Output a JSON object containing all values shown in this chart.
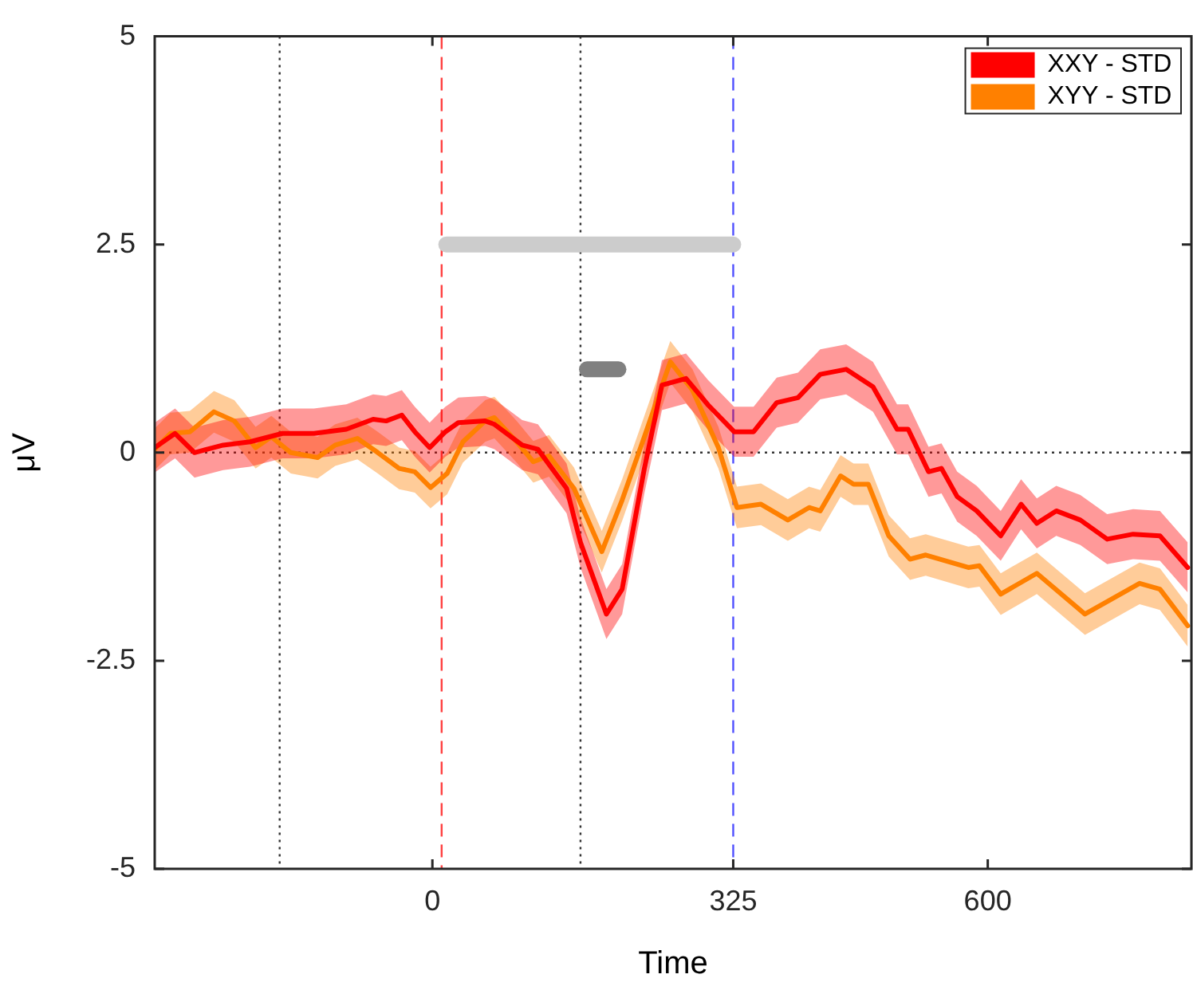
{
  "chart_data": {
    "type": "line",
    "xlabel": "Time",
    "ylabel": "μV",
    "xlim": [
      -300,
      820
    ],
    "xticks": [
      0,
      325,
      600
    ],
    "ylim": [
      -5,
      5
    ],
    "yticks": [
      -5,
      -2.5,
      0,
      2.5,
      5
    ],
    "grid": false,
    "legend": "top right",
    "marker": "none",
    "line_style": "solid",
    "series": [
      {
        "name": "XXY - STD",
        "color": "#ff0000",
        "x": [
          -300,
          -278,
          -257,
          -226,
          -197,
          -162,
          -128,
          -93,
          -64,
          -50,
          -33,
          -19,
          -3,
          14,
          28,
          57,
          67,
          97,
          114,
          145,
          160,
          188,
          205,
          229,
          248,
          274,
          298,
          326,
          347,
          372,
          395,
          419,
          447,
          476,
          502,
          514,
          536,
          550,
          567,
          588,
          614,
          636,
          653,
          674,
          700,
          729,
          757,
          786,
          816
        ],
        "values": [
          0.06,
          0.23,
          0,
          0.09,
          0.13,
          0.23,
          0.23,
          0.28,
          0.4,
          0.38,
          0.45,
          0.25,
          0.06,
          0.25,
          0.36,
          0.38,
          0.34,
          0.09,
          0.04,
          -0.43,
          -1.08,
          -1.94,
          -1.64,
          -0.19,
          0.81,
          0.89,
          0.57,
          0.25,
          0.25,
          0.6,
          0.66,
          0.94,
          1.0,
          0.79,
          0.28,
          0.28,
          -0.23,
          -0.19,
          -0.53,
          -0.7,
          -1.0,
          -0.62,
          -0.85,
          -0.7,
          -0.81,
          -1.04,
          -0.98,
          -1.0,
          -1.38
        ],
        "lower": [
          -0.24,
          -0.07,
          -0.3,
          -0.21,
          -0.17,
          -0.07,
          -0.07,
          -0.02,
          0.1,
          0.08,
          0.15,
          -0.05,
          -0.24,
          -0.05,
          0.06,
          0.08,
          0.04,
          -0.21,
          -0.26,
          -0.73,
          -1.38,
          -2.24,
          -1.94,
          -0.49,
          0.51,
          0.59,
          0.27,
          -0.05,
          -0.05,
          0.3,
          0.36,
          0.64,
          0.7,
          0.49,
          -0.02,
          -0.02,
          -0.53,
          -0.49,
          -0.83,
          -1.0,
          -1.3,
          -0.92,
          -1.15,
          -1.0,
          -1.11,
          -1.34,
          -1.28,
          -1.3,
          -1.68
        ],
        "upper": [
          0.36,
          0.53,
          0.3,
          0.39,
          0.43,
          0.53,
          0.53,
          0.58,
          0.7,
          0.68,
          0.75,
          0.55,
          0.36,
          0.55,
          0.66,
          0.68,
          0.64,
          0.39,
          0.34,
          -0.13,
          -0.78,
          -1.64,
          -1.34,
          0.11,
          1.11,
          1.19,
          0.87,
          0.55,
          0.55,
          0.9,
          0.96,
          1.24,
          1.3,
          1.09,
          0.58,
          0.58,
          0.07,
          0.11,
          -0.23,
          -0.4,
          -0.7,
          -0.32,
          -0.55,
          -0.4,
          -0.51,
          -0.74,
          -0.68,
          -0.7,
          -1.08
        ]
      },
      {
        "name": "XYY - STD",
        "color": "#ff8000",
        "x": [
          -300,
          -283,
          -262,
          -236,
          -214,
          -191,
          -174,
          -153,
          -124,
          -105,
          -81,
          -59,
          -36,
          -19,
          -2,
          16,
          33,
          57,
          67,
          91,
          109,
          126,
          153,
          183,
          205,
          229,
          257,
          281,
          309,
          329,
          355,
          384,
          407,
          419,
          441,
          455,
          471,
          493,
          516,
          533,
          579,
          591,
          614,
          653,
          705,
          764,
          786,
          816
        ],
        "values": [
          0.04,
          0.23,
          0.25,
          0.49,
          0.38,
          0.06,
          0.19,
          0,
          -0.06,
          0.09,
          0.17,
          0,
          -0.19,
          -0.23,
          -0.42,
          -0.25,
          0.13,
          0.38,
          0.42,
          0.13,
          -0.11,
          -0.04,
          -0.43,
          -1.19,
          -0.57,
          0.19,
          1.09,
          0.75,
          0.06,
          -0.66,
          -0.62,
          -0.81,
          -0.66,
          -0.7,
          -0.28,
          -0.38,
          -0.38,
          -1.0,
          -1.28,
          -1.23,
          -1.38,
          -1.36,
          -1.7,
          -1.45,
          -1.94,
          -1.57,
          -1.64,
          -2.08
        ],
        "lower": [
          -0.21,
          -0.02,
          0,
          0.24,
          0.13,
          -0.19,
          -0.06,
          -0.25,
          -0.31,
          -0.16,
          -0.08,
          -0.25,
          -0.44,
          -0.48,
          -0.67,
          -0.5,
          -0.12,
          0.13,
          0.17,
          -0.12,
          -0.36,
          -0.29,
          -0.68,
          -1.44,
          -0.82,
          -0.06,
          0.84,
          0.5,
          -0.19,
          -0.91,
          -0.87,
          -1.06,
          -0.91,
          -0.95,
          -0.53,
          -0.63,
          -0.63,
          -1.25,
          -1.53,
          -1.48,
          -1.63,
          -1.61,
          -1.95,
          -1.7,
          -2.19,
          -1.82,
          -1.89,
          -2.33
        ],
        "upper": [
          0.29,
          0.48,
          0.5,
          0.74,
          0.63,
          0.31,
          0.44,
          0.25,
          0.19,
          0.34,
          0.42,
          0.25,
          0.06,
          0.02,
          -0.17,
          0,
          0.38,
          0.63,
          0.67,
          0.38,
          0.14,
          0.21,
          -0.18,
          -0.94,
          -0.32,
          0.44,
          1.34,
          1.0,
          0.31,
          -0.41,
          -0.37,
          -0.56,
          -0.41,
          -0.45,
          -0.03,
          -0.13,
          -0.13,
          -0.75,
          -1.03,
          -0.98,
          -1.13,
          -1.11,
          -1.45,
          -1.2,
          -1.69,
          -1.32,
          -1.39,
          -1.83
        ]
      },
      {
        "type": "line",
        "color": "#cccccc",
        "x": [
          15,
          325
        ],
        "values": [
          2.5,
          2.5
        ]
      },
      {
        "type": "line",
        "color": "#808080",
        "x": [
          167,
          201
        ],
        "values": [
          1,
          1
        ]
      }
    ],
    "ref_lines": [
      {
        "axis": "y",
        "value": 0,
        "color": "#333333",
        "line_style": "dotted"
      },
      {
        "axis": "x",
        "value": -165,
        "color": "#333333",
        "line_style": "dotted"
      },
      {
        "axis": "x",
        "value": 10,
        "color": "#ff4040",
        "line_style": "dashed"
      },
      {
        "axis": "x",
        "value": 160,
        "color": "#333333",
        "line_style": "dotted"
      },
      {
        "axis": "x",
        "value": 325,
        "color": "#5050ff",
        "line_style": "dashed"
      }
    ]
  }
}
